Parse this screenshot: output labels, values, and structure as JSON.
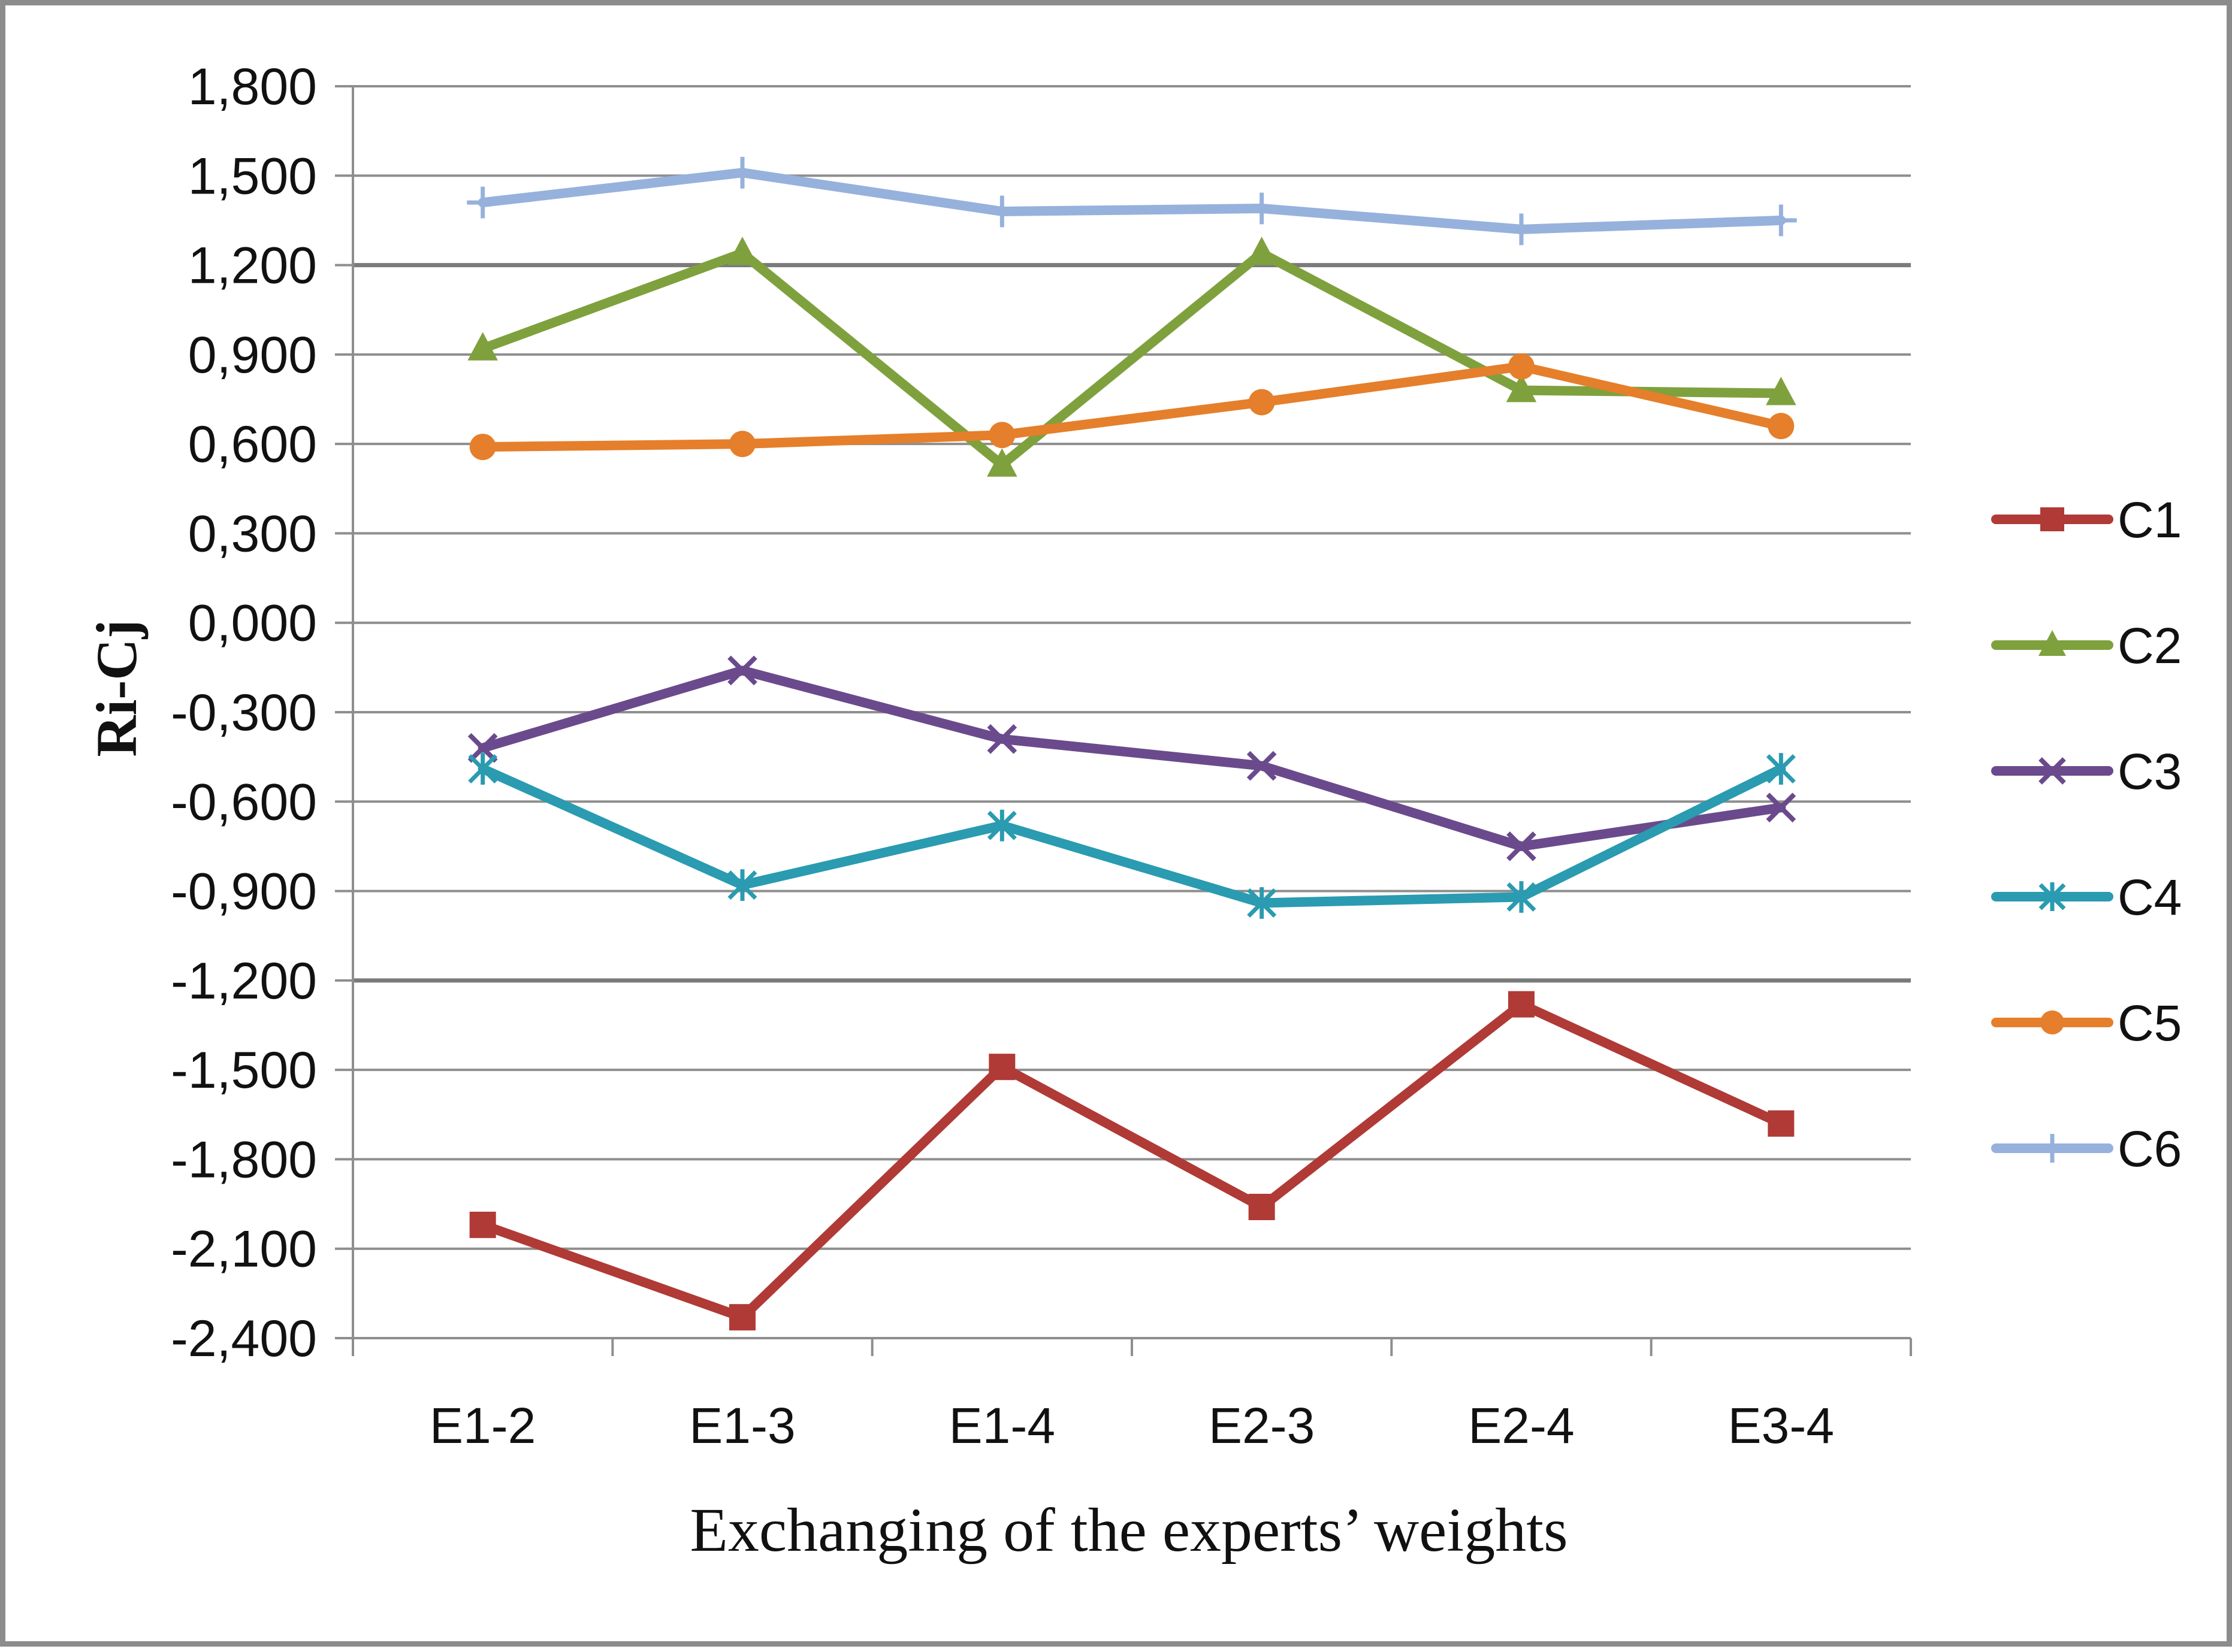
{
  "chart_data": {
    "type": "line",
    "title": "",
    "xlabel": "Exchanging of the experts’ weights",
    "ylabel": "Ri-Cj",
    "categories": [
      "E1-2",
      "E1-3",
      "E1-4",
      "E2-3",
      "E2-4",
      "E3-4"
    ],
    "ylim": [
      -2.4,
      1.8
    ],
    "yticks": [
      1.8,
      1.5,
      1.2,
      0.9,
      0.6,
      0.3,
      0.0,
      -0.3,
      -0.6,
      -0.9,
      -1.2,
      -1.5,
      -1.8,
      -2.1,
      -2.4
    ],
    "ytick_labels": [
      "1,800",
      "1,500",
      "1,200",
      "0,900",
      "0,600",
      "0,300",
      "0,000",
      "-0,300",
      "-0,600",
      "-0,900",
      "-1,200",
      "-1,500",
      "-1,800",
      "-2,100",
      "-2,400"
    ],
    "grid": "horizontal",
    "legend_position": "right",
    "series": [
      {
        "name": "C1",
        "color": "#b03a36",
        "marker": "square",
        "values": [
          -2.02,
          -2.33,
          -1.49,
          -1.96,
          -1.28,
          -1.68
        ]
      },
      {
        "name": "C2",
        "color": "#7ea13e",
        "marker": "triangle",
        "values": [
          0.92,
          1.24,
          0.53,
          1.24,
          0.78,
          0.77
        ]
      },
      {
        "name": "C3",
        "color": "#6a4a8c",
        "marker": "x",
        "values": [
          -0.42,
          -0.16,
          -0.39,
          -0.48,
          -0.75,
          -0.62
        ]
      },
      {
        "name": "C4",
        "color": "#2a9bb0",
        "marker": "asterisk",
        "values": [
          -0.49,
          -0.88,
          -0.68,
          -0.94,
          -0.92,
          -0.49
        ]
      },
      {
        "name": "C5",
        "color": "#e57f2b",
        "marker": "circle",
        "values": [
          0.59,
          0.6,
          0.63,
          0.74,
          0.86,
          0.66
        ]
      },
      {
        "name": "C6",
        "color": "#96b1dc",
        "marker": "plus",
        "values": [
          1.41,
          1.51,
          1.38,
          1.39,
          1.32,
          1.35
        ]
      }
    ]
  }
}
